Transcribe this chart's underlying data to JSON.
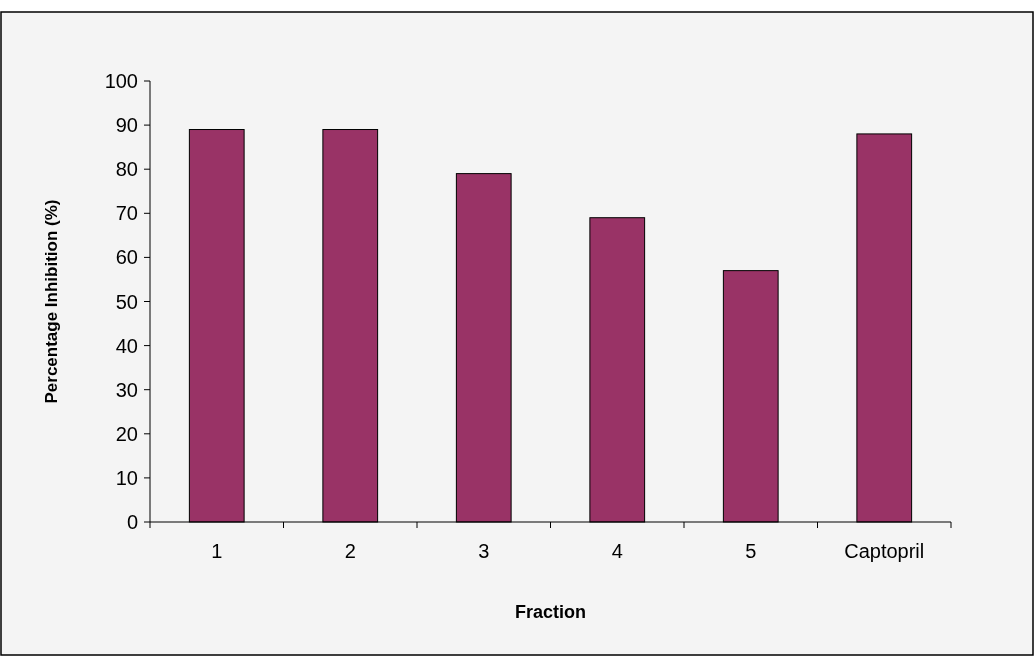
{
  "chart_data": {
    "type": "bar",
    "xlabel": "Fraction",
    "ylabel": "Percentage Inhibition (%)",
    "categories": [
      "1",
      "2",
      "3",
      "4",
      "5",
      "Captopril"
    ],
    "values": [
      89,
      89,
      79,
      69,
      57,
      88
    ],
    "color": "#993366",
    "ylim": [
      0,
      100
    ],
    "yticks": [
      0,
      10,
      20,
      30,
      40,
      50,
      60,
      70,
      80,
      90,
      100
    ],
    "grid": false
  }
}
